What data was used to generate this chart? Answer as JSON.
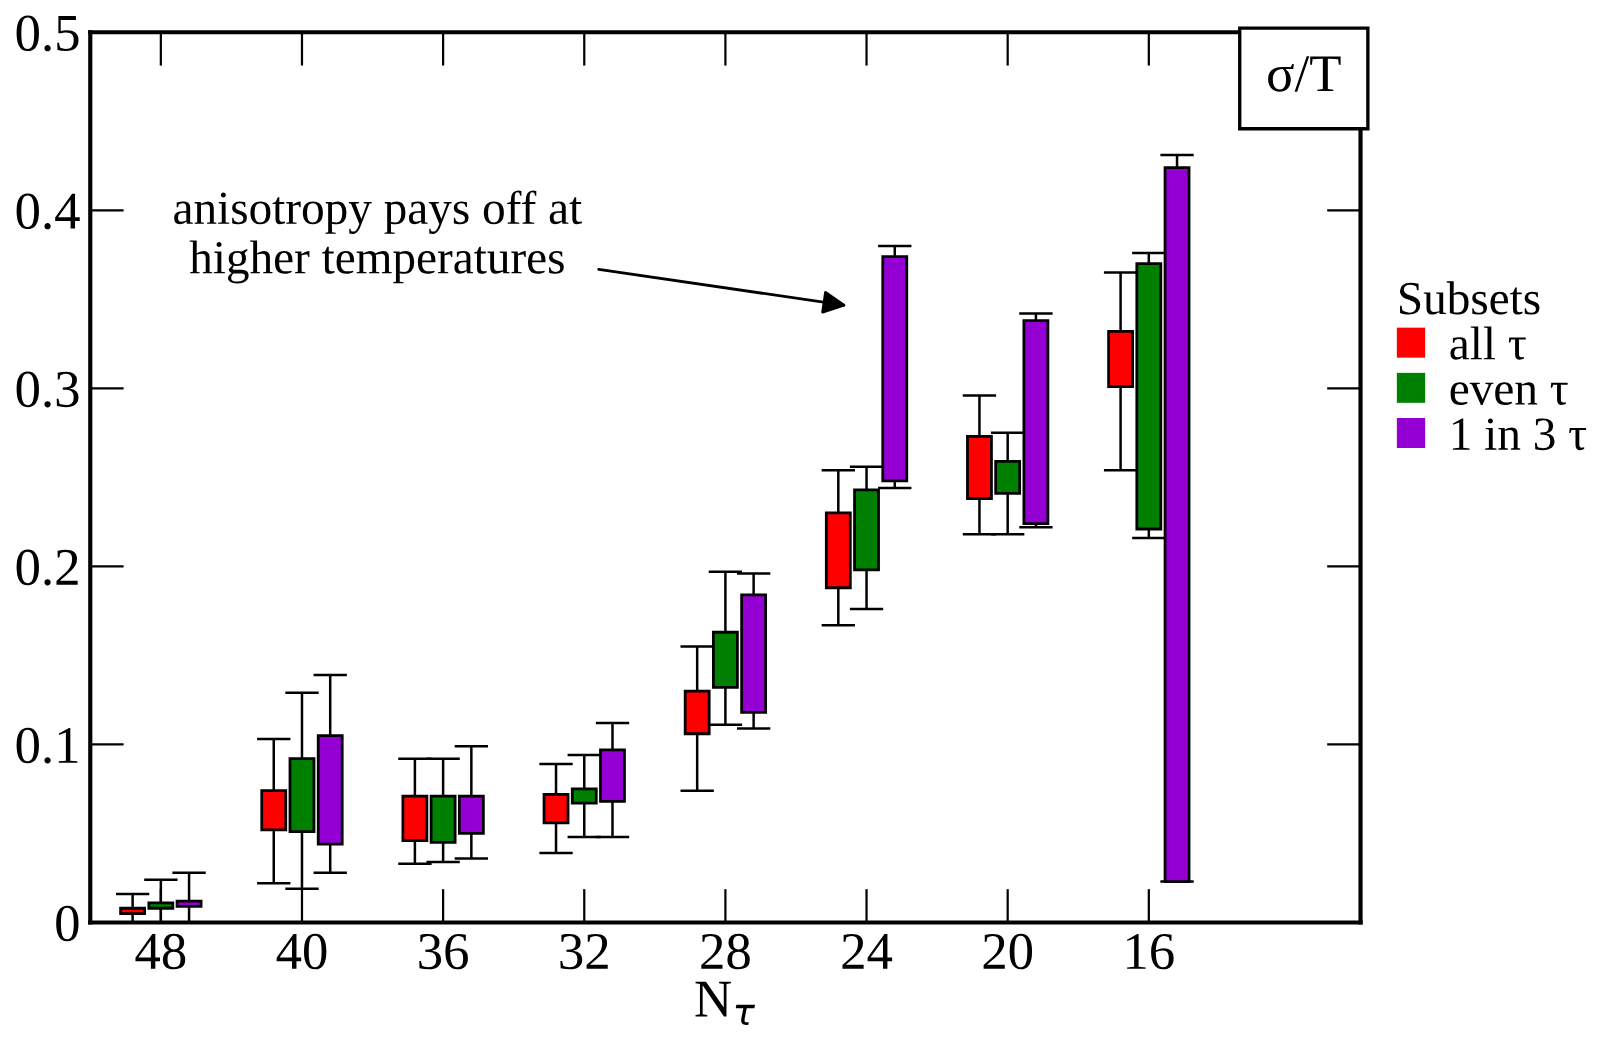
{
  "chart_data": {
    "type": "bar",
    "title": "σ/T",
    "xlabel": "N$_{τ}$",
    "legend_title": "Subsets",
    "legend": "right",
    "grid": false,
    "categories": [
      "48",
      "40",
      "36",
      "32",
      "28",
      "24",
      "20",
      "16"
    ],
    "ylim": [
      0,
      0.5
    ],
    "yticks": [
      0,
      0.1,
      0.2,
      0.3,
      0.4,
      0.5
    ],
    "annotations": [
      "anisotropy pays off at\nhigher temperatures"
    ],
    "series": [
      {
        "name": "all τ",
        "color": "#ff0000",
        "base": [
          0.005,
          0.052,
          0.046,
          0.056,
          0.106,
          0.188,
          0.238,
          0.301
        ],
        "values": [
          0.003,
          0.022,
          0.025,
          0.016,
          0.024,
          0.042,
          0.035,
          0.031
        ],
        "errors": [
          [
            0,
            0.016
          ],
          [
            0.022,
            0.103
          ],
          [
            0.033,
            0.092
          ],
          [
            0.039,
            0.089
          ],
          [
            0.074,
            0.155
          ],
          [
            0.167,
            0.254
          ],
          [
            0.218,
            0.296
          ],
          [
            0.254,
            0.365
          ]
        ]
      },
      {
        "name": "even τ",
        "color": "#008000",
        "base": [
          0.008,
          0.051,
          0.045,
          0.067,
          0.132,
          0.198,
          0.241,
          0.221
        ],
        "values": [
          0.003,
          0.041,
          0.026,
          0.008,
          0.031,
          0.045,
          0.018,
          0.149
        ],
        "errors": [
          [
            0,
            0.024
          ],
          [
            0.019,
            0.129
          ],
          [
            0.034,
            0.092
          ],
          [
            0.048,
            0.094
          ],
          [
            0.111,
            0.197
          ],
          [
            0.176,
            0.256
          ],
          [
            0.218,
            0.275
          ],
          [
            0.216,
            0.376
          ]
        ]
      },
      {
        "name": "1 in 3 τ",
        "color": "#9400d3",
        "base": [
          0.009,
          0.044,
          0.05,
          0.068,
          0.118,
          0.248,
          0.224,
          0.023
        ],
        "values": [
          0.003,
          0.061,
          0.021,
          0.029,
          0.066,
          0.126,
          0.114,
          0.401
        ],
        "errors": [
          [
            0,
            0.028
          ],
          [
            0.028,
            0.139
          ],
          [
            0.036,
            0.099
          ],
          [
            0.048,
            0.112
          ],
          [
            0.109,
            0.196
          ],
          [
            0.244,
            0.38
          ],
          [
            0.222,
            0.342
          ],
          [
            0.023,
            0.431
          ]
        ]
      }
    ]
  }
}
